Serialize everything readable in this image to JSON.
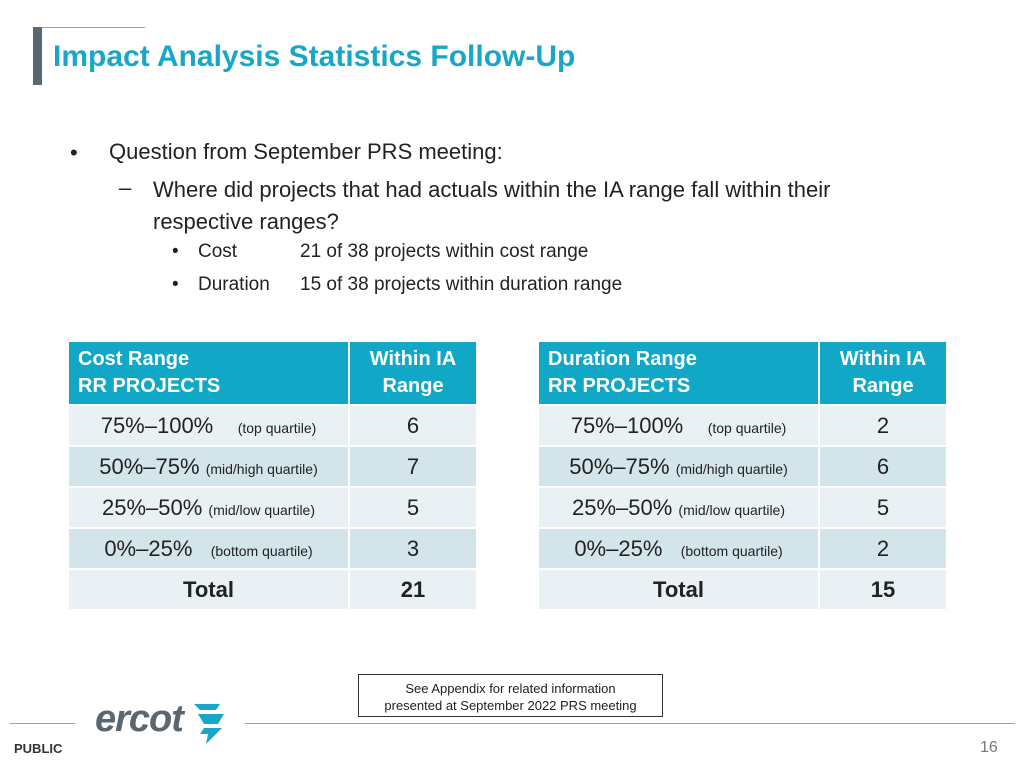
{
  "title": "Impact Analysis Statistics Follow-Up",
  "bullets": {
    "level1": "Question from September PRS meeting:",
    "level2": "Where did projects that had actuals within the IA range fall within their respective ranges?",
    "items": [
      {
        "label": "Cost",
        "text": "21 of 38 projects within cost range"
      },
      {
        "label": "Duration",
        "text": "15 of 38 projects within duration range"
      }
    ]
  },
  "cost_table": {
    "header_left_line1": "Cost Range",
    "header_left_line2": "RR PROJECTS",
    "header_right_line1": "Within IA",
    "header_right_line2": "Range",
    "rows": [
      {
        "range": "75%–100%",
        "note": "(top quartile)",
        "value": "6"
      },
      {
        "range": "50%–75%",
        "note": "(mid/high quartile)",
        "value": "7"
      },
      {
        "range": "25%–50%",
        "note": "(mid/low quartile)",
        "value": "5"
      },
      {
        "range": "0%–25%",
        "note": "(bottom quartile)",
        "value": "3"
      }
    ],
    "total_label": "Total",
    "total_value": "21"
  },
  "duration_table": {
    "header_left_line1": "Duration Range",
    "header_left_line2": "RR PROJECTS",
    "header_right_line1": "Within IA",
    "header_right_line2": "Range",
    "rows": [
      {
        "range": "75%–100%",
        "note": "(top quartile)",
        "value": "2"
      },
      {
        "range": "50%–75%",
        "note": "(mid/high quartile)",
        "value": "6"
      },
      {
        "range": "25%–50%",
        "note": "(mid/low quartile)",
        "value": "5"
      },
      {
        "range": "0%–25%",
        "note": "(bottom quartile)",
        "value": "2"
      }
    ],
    "total_label": "Total",
    "total_value": "15"
  },
  "appendix_note": {
    "line1": "See Appendix for related information",
    "line2": "presented at September 2022 PRS meeting"
  },
  "footer": {
    "logo_text": "ercot",
    "classification": "PUBLIC",
    "page_number": "16"
  },
  "colors": {
    "accent": "#1aa6c6",
    "table_header": "#11a8c8",
    "row_dark": "#d3e4ea",
    "row_light": "#eaf1f4",
    "logo_gray": "#5b6770"
  }
}
